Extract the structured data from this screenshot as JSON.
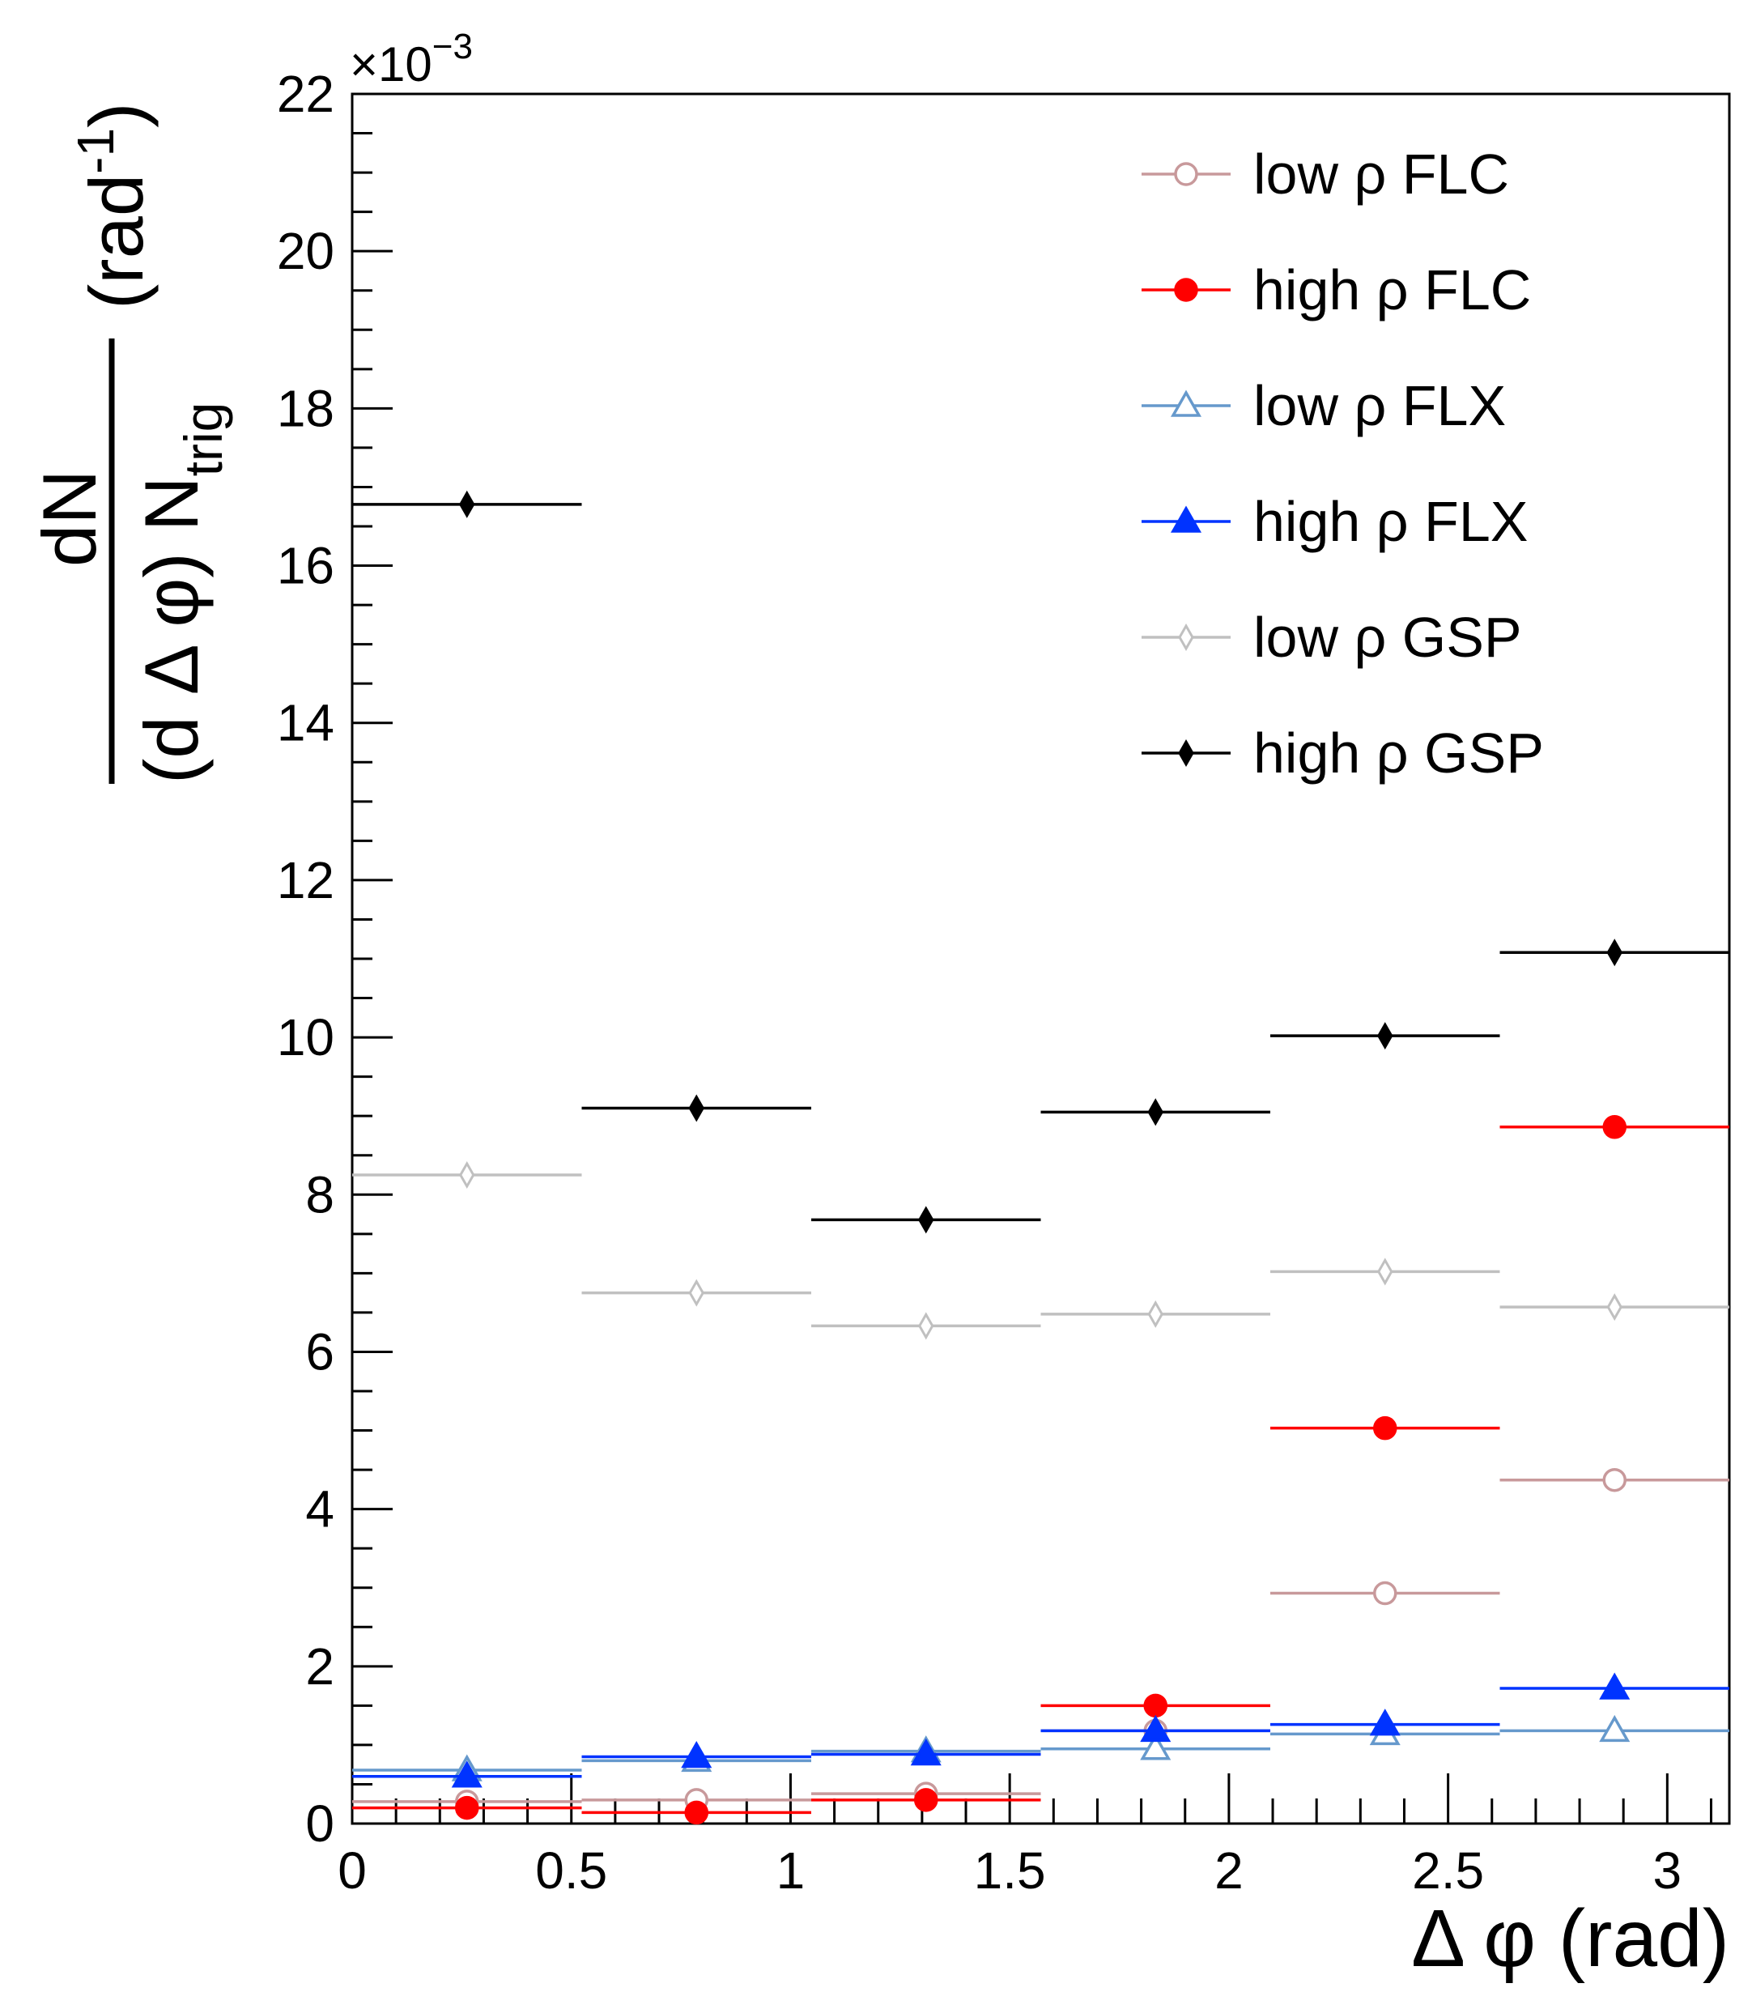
{
  "chart_data": {
    "type": "scatter",
    "title": "",
    "xlabel": "Δ φ (rad)",
    "ylabel": {
      "numerator": "dN",
      "denominator": "(d Δ φ) N",
      "denominator_subscript": "trig",
      "unit": "(rad",
      "unit_superscript": "-1",
      "unit_close": ")"
    },
    "y_multiplier": {
      "base": "×10",
      "exponent": "−3"
    },
    "xlim": [
      0,
      3.14159
    ],
    "ylim": [
      0,
      22
    ],
    "x_ticks": [
      {
        "value": 0,
        "label": "0"
      },
      {
        "value": 0.5,
        "label": "0.5"
      },
      {
        "value": 1,
        "label": "1"
      },
      {
        "value": 1.5,
        "label": "1.5"
      },
      {
        "value": 2,
        "label": "2"
      },
      {
        "value": 2.5,
        "label": "2.5"
      },
      {
        "value": 3,
        "label": "3"
      }
    ],
    "y_ticks": [
      {
        "value": 0,
        "label": "0"
      },
      {
        "value": 2,
        "label": "2"
      },
      {
        "value": 4,
        "label": "4"
      },
      {
        "value": 6,
        "label": "6"
      },
      {
        "value": 8,
        "label": "8"
      },
      {
        "value": 10,
        "label": "10"
      },
      {
        "value": 12,
        "label": "12"
      },
      {
        "value": 14,
        "label": "14"
      },
      {
        "value": 16,
        "label": "16"
      },
      {
        "value": 18,
        "label": "18"
      },
      {
        "value": 20,
        "label": "20"
      },
      {
        "value": 22,
        "label": "22"
      }
    ],
    "bin_edges": [
      0,
      0.5236,
      1.0472,
      1.5708,
      2.0944,
      2.618,
      3.1416
    ],
    "x": [
      0.2618,
      0.7854,
      1.309,
      1.8326,
      2.3562,
      2.8798
    ],
    "legend_position": "top-right",
    "series": [
      {
        "name": "low ρ FLC",
        "color": "#c8999b",
        "marker": "circle-open",
        "values": [
          0.28,
          0.3,
          0.38,
          1.18,
          2.93,
          4.37
        ]
      },
      {
        "name": "high ρ FLC",
        "color": "#ff0000",
        "marker": "circle-filled",
        "values": [
          0.2,
          0.14,
          0.3,
          1.5,
          5.03,
          8.86
        ]
      },
      {
        "name": "low ρ FLX",
        "color": "#6699cc",
        "marker": "triangle-open",
        "values": [
          0.68,
          0.8,
          0.92,
          0.95,
          1.14,
          1.18
        ]
      },
      {
        "name": "high ρ FLX",
        "color": "#0033ff",
        "marker": "triangle-filled",
        "values": [
          0.6,
          0.85,
          0.88,
          1.18,
          1.26,
          1.72
        ]
      },
      {
        "name": "low ρ GSP",
        "color": "#c0c0c0",
        "marker": "diamond-open",
        "values": [
          8.25,
          6.75,
          6.33,
          6.48,
          7.02,
          6.57
        ]
      },
      {
        "name": "high ρ GSP",
        "color": "#000000",
        "marker": "diamond-filled",
        "values": [
          16.78,
          9.1,
          7.68,
          9.05,
          10.02,
          11.08
        ]
      }
    ]
  }
}
